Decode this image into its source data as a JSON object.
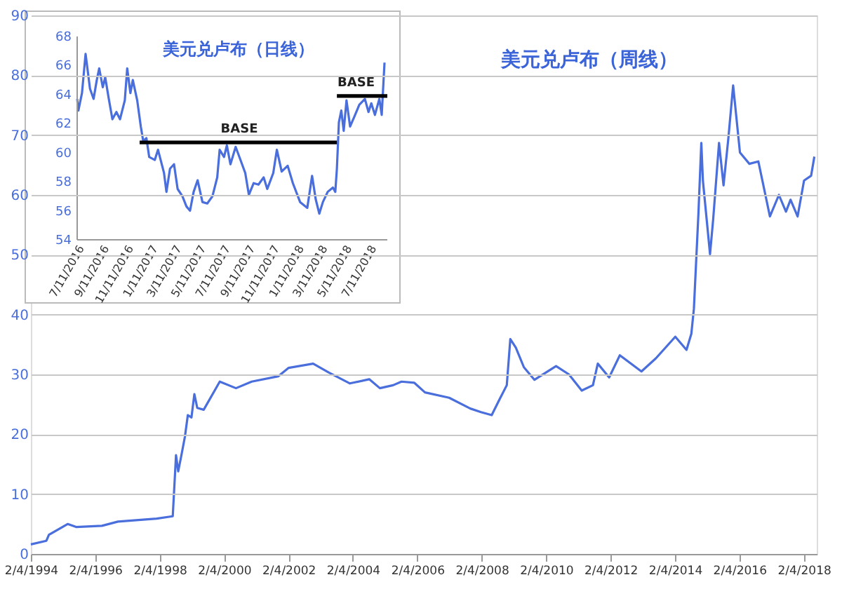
{
  "chart_data": [
    {
      "type": "line",
      "title": "美元兑卢布（周线）",
      "color": "#4a6fdc",
      "grid": "y",
      "x": [
        "1994-02-04",
        "1994-07-30",
        "1994-08-28",
        "1995-03-28",
        "1995-07-02",
        "1996-04-20",
        "1996-10-19",
        "1998-01-01",
        "1998-07-02",
        "1998-08-08",
        "1998-09-02",
        "1998-10-08",
        "1998-11-17",
        "1998-12-20",
        "1999-01-30",
        "1999-03-04",
        "1999-04-06",
        "1999-06-18",
        "1999-12-17",
        "2000-06-18",
        "2000-12-13",
        "2001-10-12",
        "2002-02-06",
        "2002-11-10",
        "2003-05-08",
        "2004-01-01",
        "2004-08-07",
        "2004-12-06",
        "2005-05-05",
        "2005-08-08",
        "2006-01-01",
        "2006-05-01",
        "2007-01-30",
        "2007-09-27",
        "2008-01-26",
        "2008-05-27",
        "2008-08-26",
        "2008-11-14",
        "2008-12-24",
        "2009-02-24",
        "2009-05-27",
        "2009-09-24",
        "2010-05-27",
        "2010-10-20",
        "2011-03-14",
        "2011-07-19",
        "2011-09-12",
        "2012-01-19",
        "2012-05-19",
        "2013-01-19",
        "2013-07-02",
        "2014-02-07",
        "2014-06-14",
        "2014-08-08",
        "2014-09-06",
        "2014-10-27",
        "2014-11-29",
        "2014-12-17",
        "2015-03-08",
        "2015-04-13",
        "2015-06-18",
        "2015-08-08",
        "2015-10-02",
        "2015-11-25",
        "2016-02-10",
        "2016-05-27",
        "2016-09-06",
        "2017-01-15",
        "2017-04-27",
        "2017-07-16",
        "2017-09-06",
        "2017-11-25",
        "2018-02-06",
        "2018-04-27",
        "2018-06-03"
      ],
      "values": [
        1.6,
        2.2,
        3.2,
        5.0,
        4.5,
        4.7,
        5.4,
        5.9,
        6.3,
        16.5,
        13.8,
        16.5,
        19.6,
        23.2,
        22.8,
        26.7,
        24.4,
        24.1,
        28.8,
        27.7,
        28.8,
        29.7,
        31.1,
        31.8,
        30.3,
        28.5,
        29.2,
        27.7,
        28.2,
        28.8,
        28.6,
        27.0,
        26.1,
        24.3,
        23.7,
        23.2,
        25.9,
        28.2,
        35.9,
        34.5,
        31.2,
        29.1,
        31.4,
        30.0,
        27.3,
        28.2,
        31.8,
        29.5,
        33.2,
        30.5,
        32.7,
        36.3,
        34.1,
        36.8,
        41,
        56.8,
        68.7,
        62.4,
        50.1,
        56,
        68.7,
        61.6,
        69.5,
        78.3,
        67.1,
        65.2,
        65.6,
        56.4,
        60,
        57.2,
        59.2,
        56.4,
        62.4,
        63.2,
        66.4
      ],
      "xlim": [
        "1994-02-04",
        "2018-06-30"
      ],
      "xticks": [
        {
          "value": "1994-02-04",
          "label": "2/4/1994"
        },
        {
          "value": "1996-02-04",
          "label": "2/4/1996"
        },
        {
          "value": "1998-02-04",
          "label": "2/4/1998"
        },
        {
          "value": "2000-02-04",
          "label": "2/4/2000"
        },
        {
          "value": "2002-02-04",
          "label": "2/4/2002"
        },
        {
          "value": "2004-02-04",
          "label": "2/4/2004"
        },
        {
          "value": "2006-02-04",
          "label": "2/4/2006"
        },
        {
          "value": "2008-02-04",
          "label": "2/4/2008"
        },
        {
          "value": "2010-02-04",
          "label": "2/4/2010"
        },
        {
          "value": "2012-02-04",
          "label": "2/4/2012"
        },
        {
          "value": "2014-02-04",
          "label": "2/4/2014"
        },
        {
          "value": "2016-02-04",
          "label": "2/4/2016"
        },
        {
          "value": "2018-02-04",
          "label": "2/4/2018"
        }
      ],
      "ylim": [
        0,
        90
      ],
      "yticks": [
        0,
        10,
        20,
        30,
        40,
        50,
        60,
        70,
        80,
        90
      ]
    },
    {
      "type": "line",
      "title": "美元兑卢布（日线）",
      "grid": false,
      "series": [
        {
          "color": "#4a6fdc",
          "x": [
            "2016-07-11",
            "2016-07-14",
            "2016-07-23",
            "2016-08-01",
            "2016-08-12",
            "2016-08-21",
            "2016-08-29",
            "2016-09-04",
            "2016-09-13",
            "2016-09-19",
            "2016-09-28",
            "2016-10-07",
            "2016-10-17",
            "2016-10-26",
            "2016-11-07",
            "2016-11-13",
            "2016-11-21",
            "2016-11-27",
            "2016-12-08",
            "2016-12-17",
            "2016-12-23",
            "2016-12-31",
            "2017-01-07",
            "2017-01-21",
            "2017-01-29",
            "2017-02-13",
            "2017-02-19",
            "2017-02-28",
            "2017-03-10",
            "2017-03-19",
            "2017-03-31",
            "2017-04-10",
            "2017-04-19",
            "2017-04-28",
            "2017-05-08",
            "2017-05-20",
            "2017-06-01",
            "2017-06-14",
            "2017-06-26",
            "2017-07-02",
            "2017-07-13",
            "2017-07-20",
            "2017-07-29",
            "2017-08-11",
            "2017-08-23",
            "2017-09-04",
            "2017-09-13",
            "2017-09-25",
            "2017-10-07",
            "2017-10-20",
            "2017-10-29",
            "2017-11-13",
            "2017-11-22",
            "2017-12-04",
            "2017-12-19",
            "2018-01-01",
            "2018-01-19",
            "2018-02-06",
            "2018-02-18",
            "2018-02-27",
            "2018-03-08",
            "2018-03-17",
            "2018-03-29",
            "2018-04-11",
            "2018-04-17",
            "2018-04-21",
            "2018-04-26",
            "2018-05-02",
            "2018-05-08",
            "2018-05-15",
            "2018-05-24",
            "2018-06-04",
            "2018-06-16",
            "2018-06-30",
            "2018-07-09",
            "2018-07-16",
            "2018-07-25",
            "2018-08-05",
            "2018-08-11",
            "2018-08-18"
          ],
          "values": [
            63.7,
            62.9,
            64.1,
            66.8,
            64.4,
            63.7,
            65.0,
            65.8,
            64.5,
            65.2,
            63.7,
            62.3,
            62.8,
            62.3,
            63.6,
            65.8,
            64.1,
            65.0,
            63.6,
            61.8,
            60.8,
            61.0,
            59.7,
            59.5,
            60.2,
            58.6,
            57.3,
            58.9,
            59.2,
            57.5,
            57.0,
            56.3,
            56.0,
            57.3,
            58.1,
            56.6,
            56.5,
            57.0,
            58.3,
            60.2,
            59.7,
            60.5,
            59.2,
            60.4,
            59.5,
            58.6,
            57.1,
            57.9,
            57.8,
            58.3,
            57.5,
            58.6,
            60.2,
            58.7,
            59.1,
            57.9,
            56.6,
            56.2,
            58.4,
            56.8,
            55.8,
            56.6,
            57.3,
            57.6,
            57.3,
            58.9,
            62.1,
            62.9,
            61.5,
            63.6,
            61.8,
            62.5,
            63.3,
            63.7,
            62.8,
            63.4,
            62.6,
            63.7,
            62.6,
            66.2
          ]
        },
        {
          "type": "line",
          "color": "#000000",
          "x": [
            "2016-12-14",
            "2018-04-21"
          ],
          "values": [
            60.7,
            60.7
          ]
        },
        {
          "type": "line",
          "color": "#000000",
          "x": [
            "2018-04-21",
            "2018-08-25"
          ],
          "values": [
            63.9,
            63.9
          ]
        }
      ],
      "annotations": [
        {
          "text": "BASE",
          "x": "2017-08-20",
          "y": 60.7
        },
        {
          "text": "BASE",
          "x": "2018-06-08",
          "y": 63.9
        }
      ],
      "xlim": [
        "2016-07-11",
        "2018-08-25"
      ],
      "xticks": [
        {
          "value": "2016-07-11",
          "label": "7/11/2016"
        },
        {
          "value": "2016-09-11",
          "label": "9/11/2016"
        },
        {
          "value": "2016-11-11",
          "label": "11/11/2016"
        },
        {
          "value": "2017-01-11",
          "label": "1/11/2017"
        },
        {
          "value": "2017-03-11",
          "label": "3/11/2017"
        },
        {
          "value": "2017-05-11",
          "label": "5/11/2017"
        },
        {
          "value": "2017-07-11",
          "label": "7/11/2017"
        },
        {
          "value": "2017-09-11",
          "label": "9/11/2017"
        },
        {
          "value": "2017-11-11",
          "label": "11/11/2017"
        },
        {
          "value": "2018-01-11",
          "label": "1/11/2018"
        },
        {
          "value": "2018-03-11",
          "label": "3/11/2018"
        },
        {
          "value": "2018-05-11",
          "label": "5/11/2018"
        },
        {
          "value": "2018-07-11",
          "label": "7/11/2018"
        }
      ],
      "ylim": [
        54,
        68
      ],
      "yticks": [
        54,
        56,
        58,
        60,
        62,
        64,
        66,
        68
      ]
    }
  ]
}
